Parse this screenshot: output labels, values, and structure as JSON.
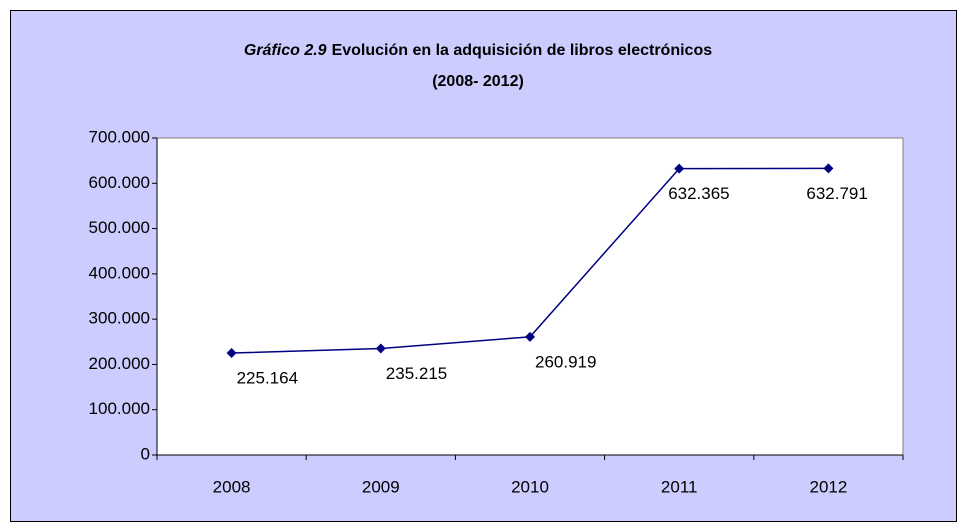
{
  "chart_data": {
    "type": "line",
    "title_label": "Gráfico 2.9",
    "title": "Evolución en la adquisición de libros electrónicos",
    "subtitle": "(2008- 2012)",
    "categories": [
      "2008",
      "2009",
      "2010",
      "2011",
      "2012"
    ],
    "series": [
      {
        "name": null,
        "color": "#000080",
        "values": [
          225164,
          235215,
          260919,
          632365,
          632791
        ],
        "value_labels": [
          "225.164",
          "235.215",
          "260.919",
          "632.365",
          "632.791"
        ]
      }
    ],
    "ylim": [
      0,
      700000
    ],
    "yticks": [
      0,
      {
        "value": 100000,
        "label": "100.000"
      },
      {
        "value": 200000,
        "label": "200.000"
      },
      {
        "value": 300000,
        "label": "300.000"
      },
      {
        "value": 400000,
        "label": "400.000"
      },
      {
        "value": 500000,
        "label": "500.000"
      },
      {
        "value": 600000,
        "label": "600.000"
      },
      {
        "value": 700000,
        "label": "700.000"
      }
    ],
    "background": "#ccccff",
    "grid": false
  }
}
